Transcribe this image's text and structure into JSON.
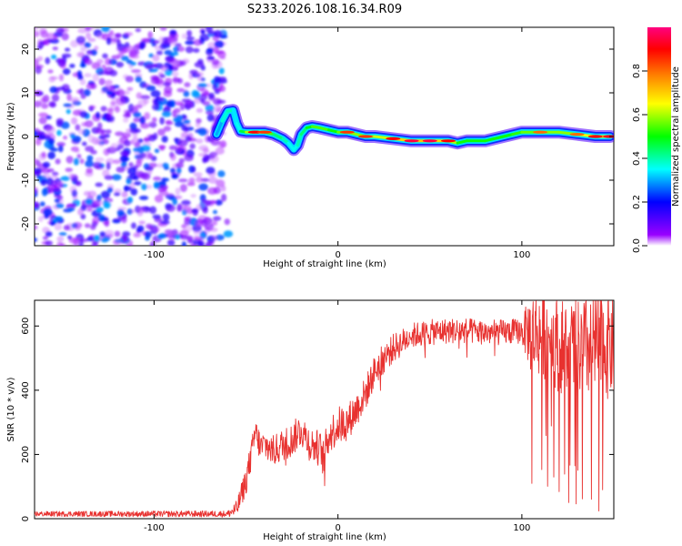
{
  "chart_data": [
    {
      "type": "heatmap",
      "title": "S233.2026.108.16.34.R09",
      "xlabel": "Height of straight line (km)",
      "ylabel": "Frequency (Hz)",
      "xlim": [
        -165,
        150
      ],
      "ylim": [
        -25,
        25
      ],
      "xticks": [
        -100,
        0,
        100
      ],
      "yticks": [
        -20,
        -10,
        0,
        10,
        20
      ],
      "colorbar": {
        "label": "Normalized spectral amplitude",
        "range": [
          0,
          1
        ],
        "ticks": [
          0.0,
          0.2,
          0.4,
          0.6,
          0.8
        ],
        "colors": [
          "#ffffff",
          "#9900ff",
          "#0000ff",
          "#00ffff",
          "#00ff00",
          "#ffff00",
          "#ff8000",
          "#ff0000",
          "#ff0080"
        ]
      },
      "noise_region": {
        "x": [
          -165,
          -62
        ],
        "y": [
          -25,
          25
        ],
        "amplitude": [
          0.0,
          0.3
        ]
      },
      "ridge": {
        "x": [
          -66,
          -63,
          -60,
          -57,
          -55,
          -53,
          -50,
          -45,
          -40,
          -35,
          -30,
          -27,
          -24,
          -22,
          -20,
          -17,
          -14,
          -10,
          -5,
          0,
          5,
          10,
          15,
          20,
          30,
          40,
          50,
          60,
          65,
          70,
          80,
          90,
          95,
          100,
          110,
          120,
          130,
          140,
          148
        ],
        "y": [
          0.5,
          3.5,
          5.8,
          6.0,
          3.0,
          1.2,
          1.0,
          1.0,
          1.0,
          0.5,
          -0.5,
          -1.5,
          -3.0,
          -2.0,
          0.5,
          2.0,
          2.3,
          2.0,
          1.5,
          1.0,
          1.0,
          0.5,
          0.0,
          0.0,
          -0.5,
          -1.0,
          -1.0,
          -1.0,
          -1.5,
          -1.0,
          -1.0,
          0.0,
          0.5,
          1.0,
          1.0,
          1.0,
          0.5,
          0.0,
          0.0
        ],
        "amplitude": [
          0.35,
          0.45,
          0.55,
          0.5,
          0.4,
          0.55,
          0.7,
          0.9,
          0.85,
          0.6,
          0.55,
          0.5,
          0.45,
          0.5,
          0.55,
          0.6,
          0.7,
          0.75,
          0.7,
          0.65,
          0.85,
          0.7,
          0.85,
          0.75,
          0.9,
          0.95,
          0.95,
          0.9,
          0.7,
          0.65,
          0.7,
          0.65,
          0.7,
          0.7,
          0.8,
          0.75,
          0.8,
          0.9,
          0.92
        ]
      }
    },
    {
      "type": "line",
      "title": "",
      "xlabel": "Height of straight line (km)",
      "ylabel": "SNR (10 * v/v)",
      "xlim": [
        -165,
        150
      ],
      "ylim": [
        0,
        680
      ],
      "xticks": [
        -100,
        0,
        100
      ],
      "yticks": [
        0,
        200,
        400,
        600
      ],
      "color": "#e8312f",
      "envelope_x": [
        -165,
        -60,
        -55,
        -50,
        -47,
        -45,
        -42,
        -40,
        -35,
        -30,
        -25,
        -20,
        -15,
        -10,
        -8,
        -5,
        0,
        5,
        10,
        15,
        20,
        25,
        30,
        40,
        50,
        60,
        70,
        80,
        90,
        100,
        105,
        110,
        115,
        120,
        130,
        140,
        150
      ],
      "envelope_y": [
        15,
        15,
        30,
        120,
        200,
        270,
        220,
        230,
        210,
        230,
        245,
        280,
        230,
        220,
        190,
        260,
        290,
        300,
        340,
        390,
        460,
        500,
        530,
        570,
        580,
        585,
        585,
        580,
        580,
        585,
        580,
        575,
        570,
        540,
        520,
        540,
        550
      ],
      "noise_amplitude_x": [
        -165,
        -60,
        -50,
        0,
        40,
        100,
        105,
        150
      ],
      "noise_amplitude_y": [
        8,
        10,
        45,
        60,
        40,
        40,
        130,
        180
      ]
    }
  ]
}
